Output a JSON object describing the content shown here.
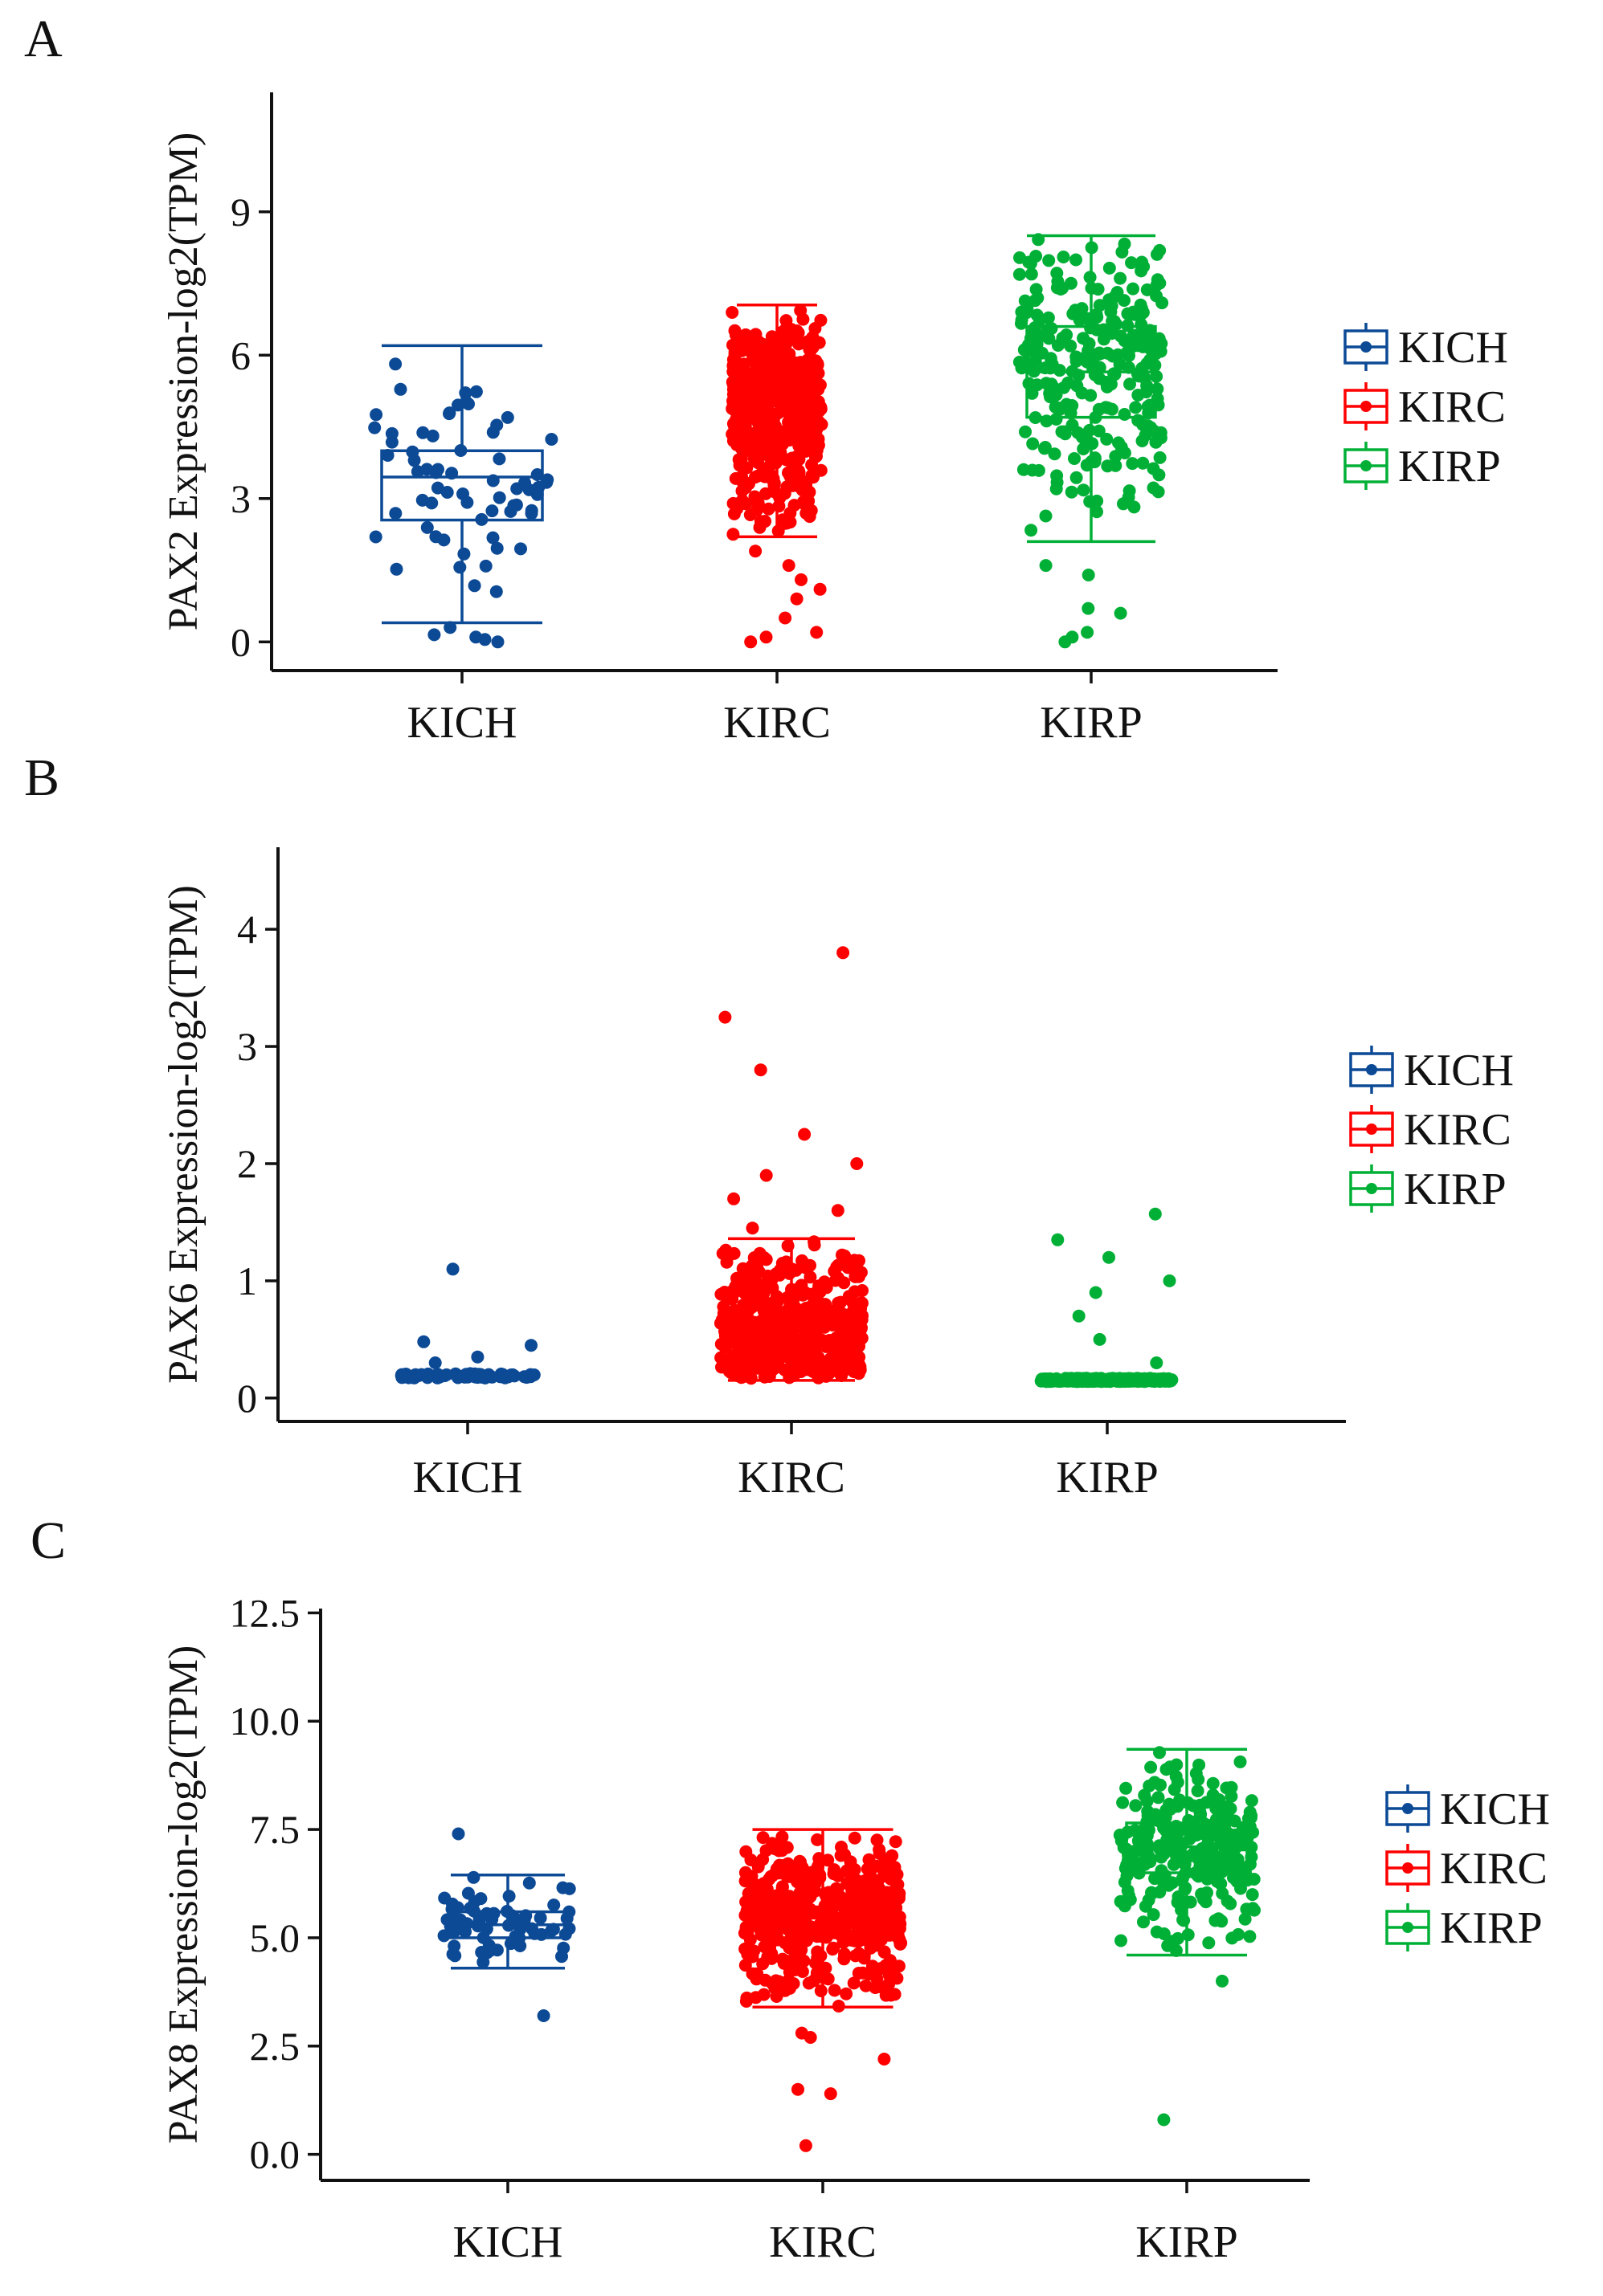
{
  "figure": {
    "colors": {
      "KICH": "#0c4a96",
      "KIRC": "#ff0000",
      "KIRP": "#00b036"
    }
  },
  "chart_data": [
    {
      "type": "box",
      "panel_label": "A",
      "title": "",
      "ylabel": "PAX2 Expression-log2(TPM)",
      "xlabel": "",
      "ylim": [
        -0.6,
        11.5
      ],
      "yticks": [
        0,
        3,
        6,
        9
      ],
      "ytick_labels": [
        "0",
        "3",
        "6",
        "9"
      ],
      "categories": [
        "KICH",
        "KIRC",
        "KIRP"
      ],
      "legend": [
        "KICH",
        "KIRC",
        "KIRP"
      ],
      "legend_position": "right",
      "boxes": [
        {
          "name": "KICH",
          "whisker_low": 0.4,
          "q1": 2.55,
          "median": 3.45,
          "q3": 4.0,
          "whisker_high": 6.2,
          "n_points": 66,
          "outliers": [
            0.0,
            0.05,
            0.1,
            0.15,
            0.3
          ]
        },
        {
          "name": "KIRC",
          "whisker_low": 2.2,
          "q1": 4.2,
          "median": 5.05,
          "q3": 5.6,
          "whisker_high": 7.05,
          "n_points": 530,
          "outliers": [
            0.0,
            0.1,
            0.2,
            0.5,
            0.9,
            1.1,
            1.3,
            1.6,
            1.9
          ]
        },
        {
          "name": "KIRP",
          "whisker_low": 2.1,
          "q1": 4.7,
          "median": 5.65,
          "q3": 6.6,
          "whisker_high": 8.5,
          "n_points": 290,
          "outliers": [
            0.0,
            0.1,
            0.2,
            0.6,
            0.7,
            1.4,
            1.6
          ]
        }
      ]
    },
    {
      "type": "box",
      "panel_label": "B",
      "title": "",
      "ylabel": "PAX6 Expression-log2(TPM)",
      "xlabel": "",
      "ylim": [
        -0.2,
        4.7
      ],
      "yticks": [
        0,
        1,
        2,
        3,
        4
      ],
      "ytick_labels": [
        "0",
        "1",
        "2",
        "3",
        "4"
      ],
      "categories": [
        "KICH",
        "KIRC",
        "KIRP"
      ],
      "legend": [
        "KICH",
        "KIRC",
        "KIRP"
      ],
      "legend_position": "right",
      "boxes": [
        {
          "name": "KICH",
          "whisker_low": 0.17,
          "q1": 0.18,
          "median": 0.19,
          "q3": 0.2,
          "whisker_high": 0.21,
          "n_points": 66,
          "outliers": [
            0.3,
            0.35,
            0.45,
            0.48,
            1.1
          ]
        },
        {
          "name": "KIRC",
          "whisker_low": 0.15,
          "q1": 0.33,
          "median": 0.5,
          "q3": 0.75,
          "whisker_high": 1.36,
          "n_points": 530,
          "outliers": [
            1.45,
            1.6,
            1.7,
            1.9,
            2.0,
            2.25,
            2.8,
            3.25,
            3.8
          ]
        },
        {
          "name": "KIRP",
          "whisker_low": 0.14,
          "q1": 0.145,
          "median": 0.15,
          "q3": 0.16,
          "whisker_high": 0.17,
          "n_points": 290,
          "outliers": [
            0.3,
            0.5,
            0.7,
            0.9,
            1.0,
            1.2,
            1.35,
            1.57
          ]
        }
      ]
    },
    {
      "type": "box",
      "panel_label": "C",
      "title": "",
      "ylabel": "PAX8 Expression-log2(TPM)",
      "xlabel": "",
      "ylim": [
        -0.6,
        12.6
      ],
      "yticks": [
        0,
        2.5,
        5,
        7.5,
        10,
        12.5
      ],
      "ytick_labels": [
        "0.0",
        "2.5",
        "5.0",
        "7.5",
        "10.0",
        "12.5"
      ],
      "categories": [
        "KICH",
        "KIRC",
        "KIRP"
      ],
      "legend": [
        "KICH",
        "KIRC",
        "KIRP"
      ],
      "legend_position": "right",
      "boxes": [
        {
          "name": "KICH",
          "whisker_low": 4.3,
          "q1": 5.0,
          "median": 5.3,
          "q3": 5.6,
          "whisker_high": 6.45,
          "n_points": 66,
          "outliers": [
            3.2,
            7.4
          ]
        },
        {
          "name": "KIRC",
          "whisker_low": 3.4,
          "q1": 5.0,
          "median": 5.5,
          "q3": 6.0,
          "whisker_high": 7.5,
          "n_points": 530,
          "outliers": [
            0.2,
            1.4,
            1.5,
            2.2,
            2.7,
            2.8
          ]
        },
        {
          "name": "KIRP",
          "whisker_low": 4.6,
          "q1": 6.5,
          "median": 7.1,
          "q3": 7.65,
          "whisker_high": 9.35,
          "n_points": 290,
          "outliers": [
            0.8,
            4.0
          ]
        }
      ]
    }
  ]
}
